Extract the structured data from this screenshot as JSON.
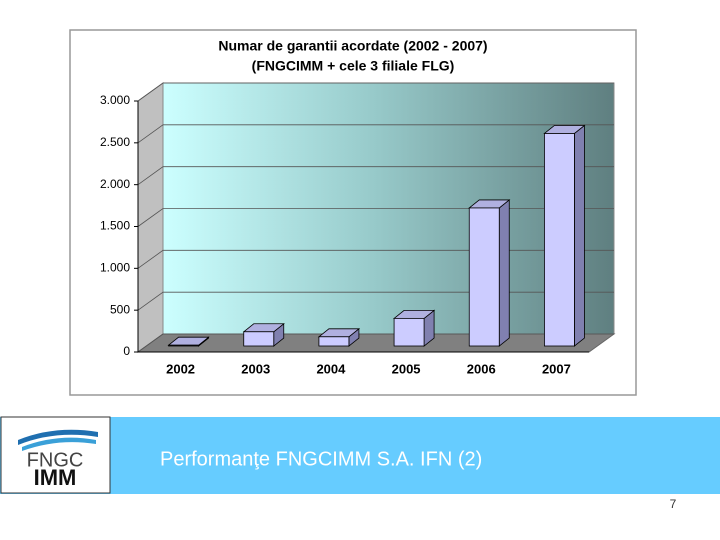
{
  "chart_data": {
    "type": "bar3d",
    "title": [
      "Numar de garantii acordate (2002 - 2007)",
      "(FNGCIMM + cele 3 filiale FLG)"
    ],
    "categories": [
      "2002",
      "2003",
      "2004",
      "2005",
      "2006",
      "2007"
    ],
    "values": [
      10,
      170,
      110,
      330,
      1650,
      2540
    ],
    "color": "#ccccff",
    "ylim": [
      0,
      3000
    ],
    "yticks": [
      0,
      500,
      {
        "value": 1000,
        "label": "1.000"
      },
      {
        "value": 1500,
        "label": "1.500"
      },
      {
        "value": 2000,
        "label": "2.000"
      },
      {
        "value": 2500,
        "label": "2.500"
      },
      {
        "value": 3000,
        "label": "3.000"
      }
    ],
    "grid": true
  },
  "slide": {
    "footer_title": "Performanţe FNGCIMM S.A. IFN (2)",
    "page_number": "7",
    "logo": [
      "FNGC",
      "IMM"
    ]
  }
}
